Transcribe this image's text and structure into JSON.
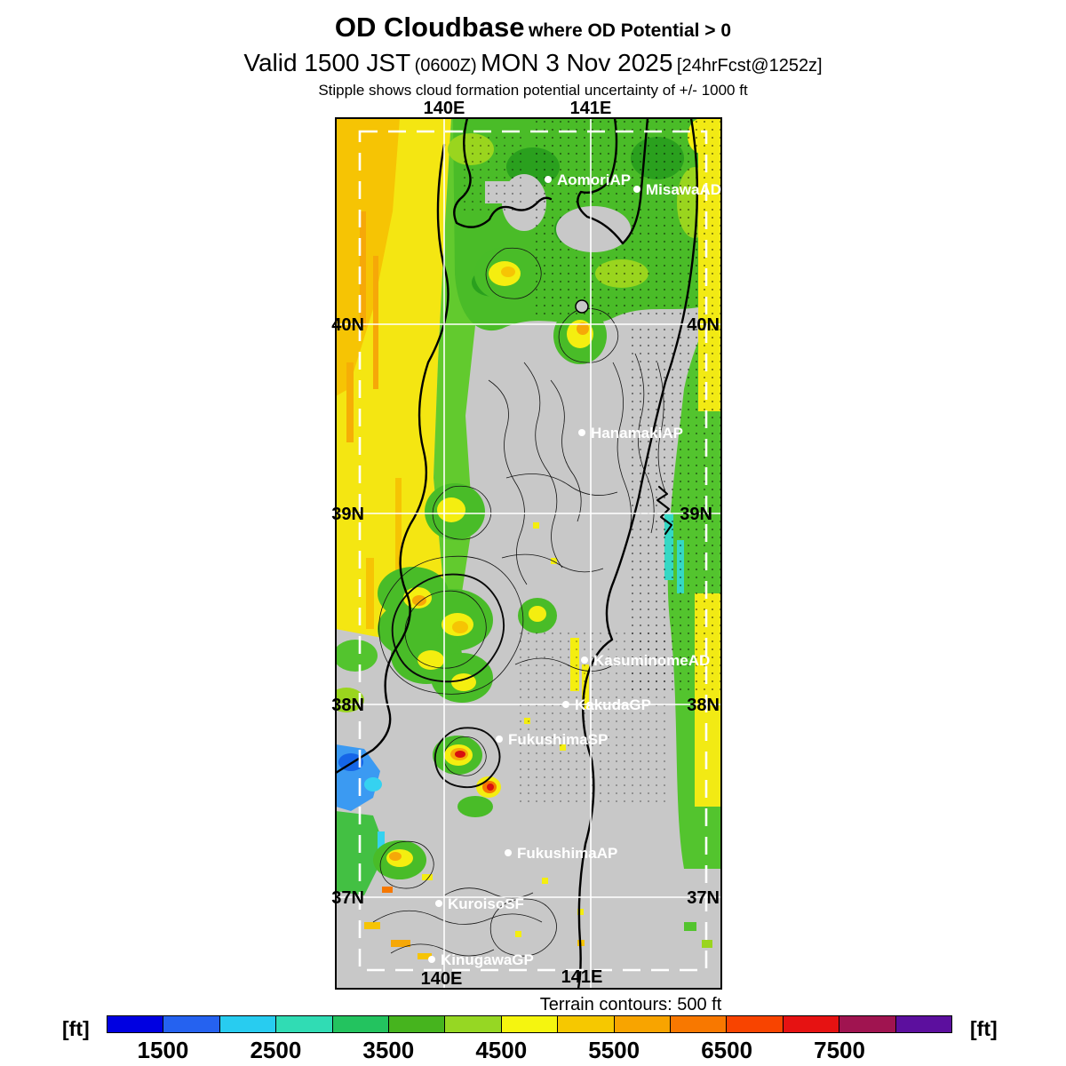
{
  "header": {
    "title": "OD Cloudbase",
    "title_qualifier": "where OD Potential > 0",
    "valid_prefix": "Valid 1500 JST",
    "valid_zulu": "(0600Z)",
    "valid_date": "MON 3 Nov 2025",
    "forecast_ref": "[24hrFcst@1252z]",
    "note": "Stipple shows cloud formation potential uncertainty of +/- 1000 ft"
  },
  "map": {
    "grid": {
      "lon_top": [
        "140E",
        "141E"
      ],
      "lon_bottom": [
        "140E",
        "141E"
      ],
      "lat_left": [
        "40N",
        "39N",
        "38N",
        "37N"
      ],
      "lat_right": [
        "40N",
        "39N",
        "38N",
        "37N"
      ]
    },
    "stations": [
      {
        "name": "AomoriAP"
      },
      {
        "name": "MisawaAD"
      },
      {
        "name": "HanamakiAP"
      },
      {
        "name": "KasuminomeAD"
      },
      {
        "name": "KakudaGP"
      },
      {
        "name": "FukushimaSP"
      },
      {
        "name": "FukushimaAP"
      },
      {
        "name": "KuroisoSF"
      },
      {
        "name": "KinugawaGP"
      }
    ]
  },
  "legend": {
    "caption": "Terrain contours: 500 ft",
    "unit_left": "[ft]",
    "unit_right": "[ft]",
    "ticks": [
      "1500",
      "2500",
      "3500",
      "4500",
      "5500",
      "6500",
      "7500"
    ],
    "scale_min_ft": 1000,
    "scale_max_ft": 8500,
    "segment_ft": 500,
    "colors": [
      "#0000e1",
      "#2562f0",
      "#28ccf0",
      "#30dcb4",
      "#23c35f",
      "#46b41e",
      "#96d723",
      "#f5f50f",
      "#f6c800",
      "#f8a400",
      "#f87800",
      "#f84400",
      "#e61212",
      "#a01450",
      "#5c0f9e"
    ]
  }
}
